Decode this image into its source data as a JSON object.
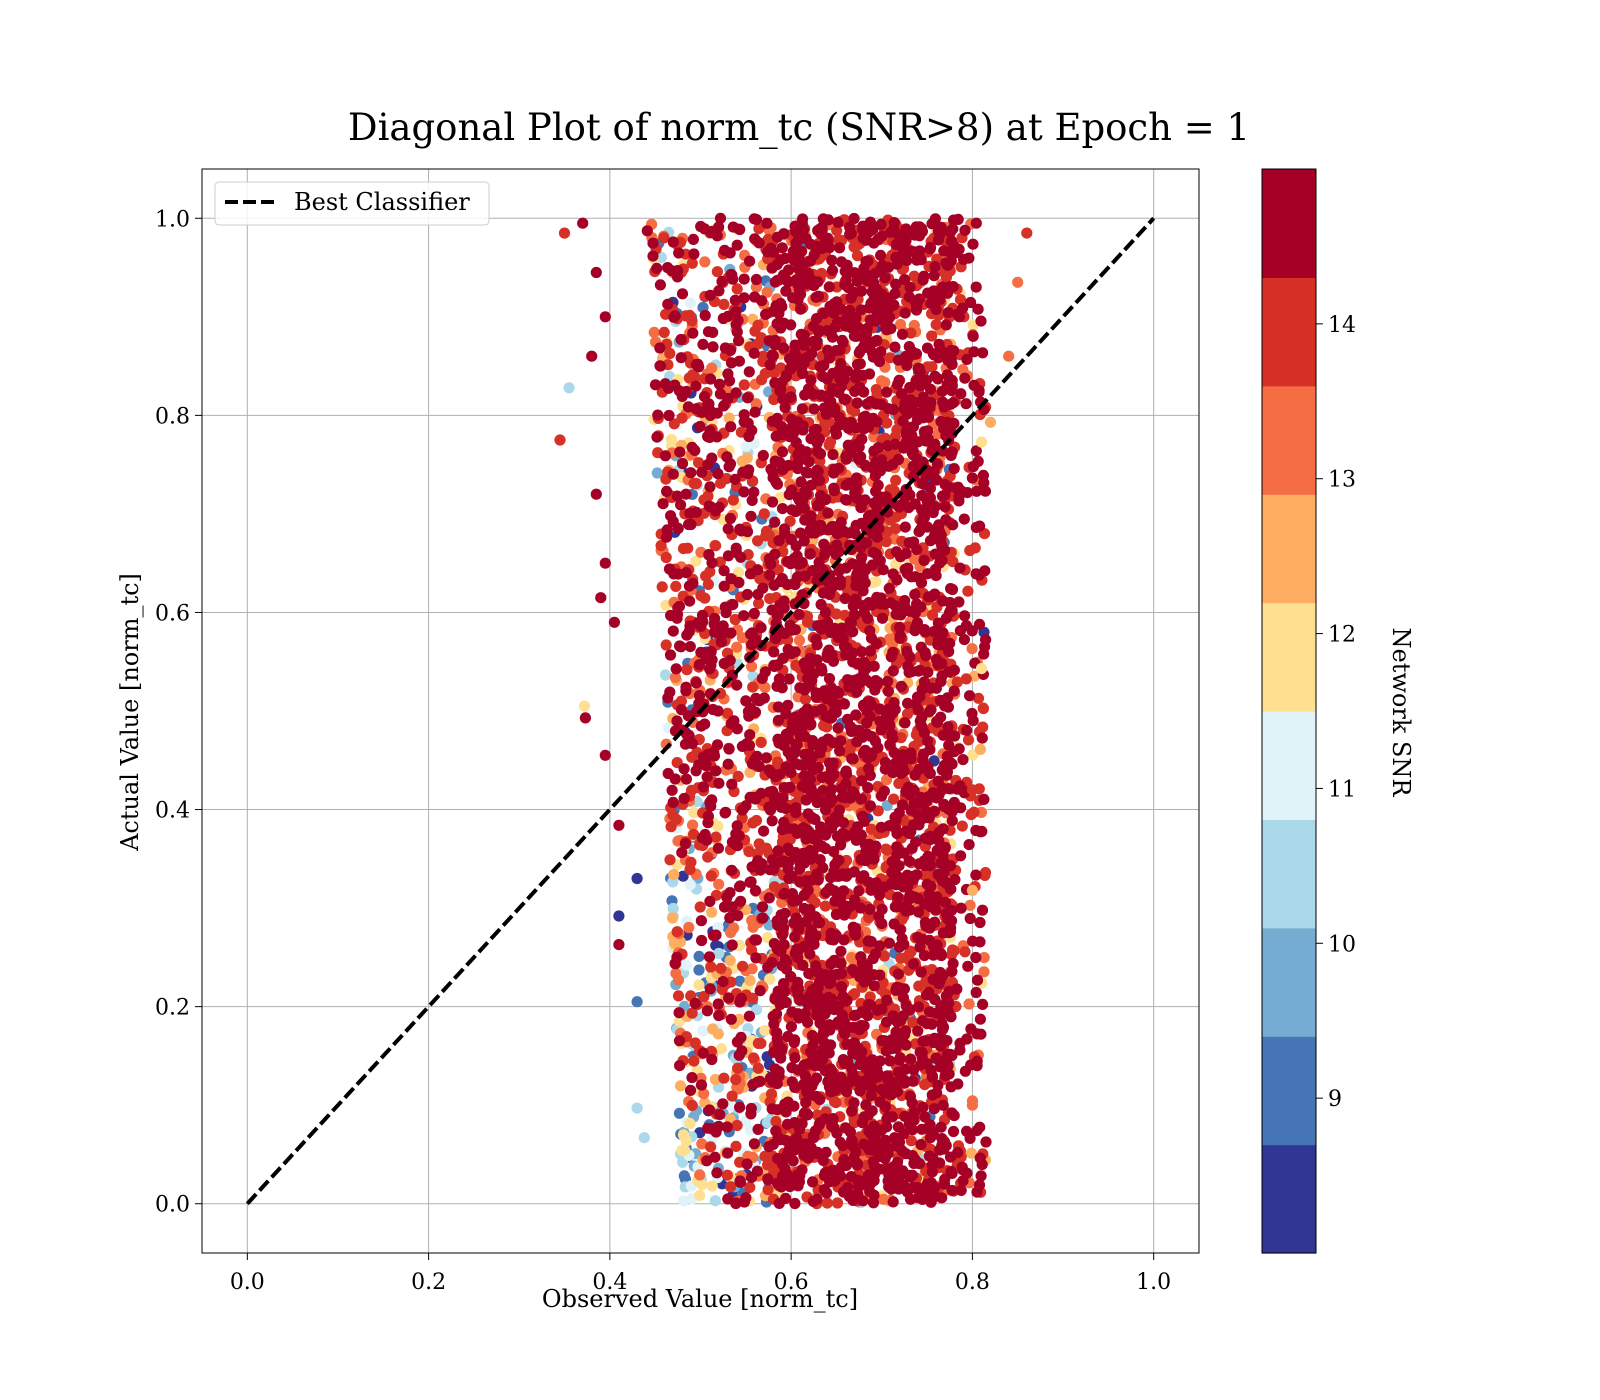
{
  "chart_data": {
    "type": "scatter",
    "title": "Diagonal Plot of norm_tc (SNR>8) at Epoch = 1",
    "xlabel": "Observed Value [norm_tc]",
    "ylabel": "Actual Value [norm_tc]",
    "xlim": [
      -0.05,
      1.05
    ],
    "ylim": [
      -0.05,
      1.05
    ],
    "xticks": [
      0.0,
      0.2,
      0.4,
      0.6,
      0.8,
      1.0
    ],
    "yticks": [
      0.0,
      0.2,
      0.4,
      0.6,
      0.8,
      1.0
    ],
    "xtick_labels": [
      "0.0",
      "0.2",
      "0.4",
      "0.6",
      "0.8",
      "1.0"
    ],
    "ytick_labels": [
      "0.0",
      "0.2",
      "0.4",
      "0.6",
      "0.8",
      "1.0"
    ],
    "grid": true,
    "legend": {
      "placement": "top-left",
      "entries": [
        {
          "label": "Best Classifier",
          "style": "dashed-black-line"
        }
      ]
    },
    "reference_line": {
      "name": "Best Classifier",
      "x": [
        0.0,
        1.0
      ],
      "y": [
        0.0,
        1.0
      ],
      "color": "#000000"
    },
    "scatter_description_points": [
      {
        "x": 0.37,
        "y": 0.995,
        "snr": 14.9
      },
      {
        "x": 0.35,
        "y": 0.985,
        "snr": 14.0
      },
      {
        "x": 0.395,
        "y": 0.9,
        "snr": 14.9
      },
      {
        "x": 0.385,
        "y": 0.945,
        "snr": 14.9
      },
      {
        "x": 0.38,
        "y": 0.86,
        "snr": 14.9
      },
      {
        "x": 0.355,
        "y": 0.828,
        "snr": 10.3
      },
      {
        "x": 0.345,
        "y": 0.775,
        "snr": 13.8
      },
      {
        "x": 0.385,
        "y": 0.72,
        "snr": 14.9
      },
      {
        "x": 0.395,
        "y": 0.65,
        "snr": 14.9
      },
      {
        "x": 0.39,
        "y": 0.615,
        "snr": 14.9
      },
      {
        "x": 0.405,
        "y": 0.59,
        "snr": 14.9
      },
      {
        "x": 0.372,
        "y": 0.505,
        "snr": 12.0
      },
      {
        "x": 0.373,
        "y": 0.493,
        "snr": 14.9
      },
      {
        "x": 0.395,
        "y": 0.455,
        "snr": 14.9
      },
      {
        "x": 0.41,
        "y": 0.384,
        "snr": 14.9
      },
      {
        "x": 0.43,
        "y": 0.33,
        "snr": 8.2
      },
      {
        "x": 0.41,
        "y": 0.292,
        "snr": 8.2
      },
      {
        "x": 0.41,
        "y": 0.263,
        "snr": 14.9
      },
      {
        "x": 0.43,
        "y": 0.205,
        "snr": 8.8
      },
      {
        "x": 0.43,
        "y": 0.097,
        "snr": 10.3
      },
      {
        "x": 0.438,
        "y": 0.067,
        "snr": 10.3
      },
      {
        "x": 0.8,
        "y": 0.1,
        "snr": 13.4
      },
      {
        "x": 0.8,
        "y": 0.42,
        "snr": 14.0
      },
      {
        "x": 0.8,
        "y": 0.318,
        "snr": 12.7
      },
      {
        "x": 0.81,
        "y": 0.543,
        "snr": 12.0
      },
      {
        "x": 0.81,
        "y": 0.773,
        "snr": 12.0
      },
      {
        "x": 0.82,
        "y": 0.793,
        "snr": 12.7
      },
      {
        "x": 0.84,
        "y": 0.86,
        "snr": 13.4
      },
      {
        "x": 0.85,
        "y": 0.935,
        "snr": 13.4
      },
      {
        "x": 0.86,
        "y": 0.985,
        "snr": 14.0
      }
    ],
    "scatter_region": {
      "description": "Dense point cloud; x mostly 0.44–0.80, y 0.0–1.0; core x 0.58–0.78 dominated by high SNR; low SNR points concentrated at x 0.46–0.58, y < 0.35",
      "x_range": [
        0.34,
        0.86
      ],
      "y_range": [
        0.0,
        1.0
      ]
    },
    "colorbar": {
      "label": "Network SNR",
      "range": [
        8,
        15
      ],
      "ticks": [
        9,
        10,
        11,
        12,
        13,
        14
      ],
      "tick_labels": [
        "9",
        "10",
        "11",
        "12",
        "13",
        "14"
      ],
      "levels": 10,
      "colors": [
        "#313695",
        "#4575b4",
        "#74add1",
        "#abd9e9",
        "#e0f3f8",
        "#fee090",
        "#fdae61",
        "#f46d43",
        "#d73027",
        "#a50026"
      ]
    }
  }
}
